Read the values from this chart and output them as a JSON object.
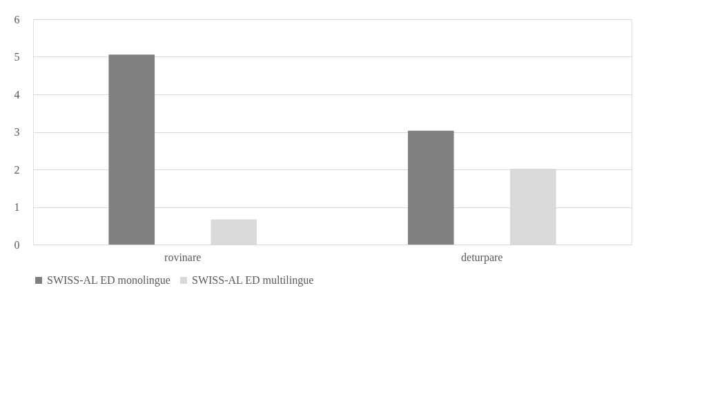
{
  "chart_data": {
    "type": "bar",
    "categories": [
      "rovinare",
      "deturpare"
    ],
    "series": [
      {
        "name": "SWISS-AL ED monolingue",
        "color": "#808080",
        "values": [
          5.06,
          3.03
        ]
      },
      {
        "name": "SWISS-AL ED multilingue",
        "color": "#d9d9d9",
        "values": [
          0.67,
          2.02
        ]
      }
    ],
    "ylim": [
      0,
      6
    ],
    "yticks": [
      0,
      1,
      2,
      3,
      4,
      5,
      6
    ],
    "grid": "y",
    "legend": "bottom"
  }
}
